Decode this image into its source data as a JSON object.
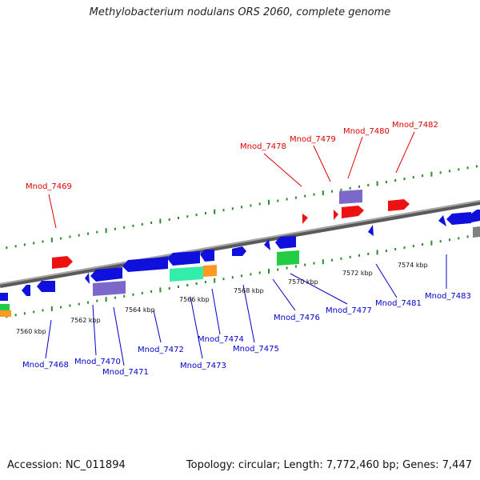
{
  "title": "Methylobacterium nodulans ORS 2060, complete genome",
  "footer": {
    "accession": "Accession: NC_011894",
    "topology": "Topology: circular; Length: 7,772,460 bp; Genes: 7,447"
  },
  "scale_labels": [
    "7560 kbp",
    "7562 kbp",
    "7564 kbp",
    "7566 kbp",
    "7568 kbp",
    "7570 kbp",
    "7572 kbp",
    "7574 kbp"
  ],
  "labels_top": [
    "Mnod_7469",
    "Mnod_7478",
    "Mnod_7479",
    "Mnod_7480",
    "Mnod_7482"
  ],
  "labels_bottom": [
    "Mnod_7468",
    "Mnod_7470",
    "Mnod_7471",
    "Mnod_7472",
    "Mnod_7473",
    "Mnod_7474",
    "Mnod_7475",
    "Mnod_7476",
    "Mnod_7477",
    "Mnod_7481",
    "Mnod_7483"
  ],
  "colors": {
    "top_label": "#dd0000",
    "bottom_label": "#0000cc",
    "tick": "#2a8a2a",
    "backbone": "#808080",
    "gene_blue": "#1010dd",
    "gene_red": "#ee1111",
    "gene_purple": "#7b68c8",
    "gene_green": "#22cc44",
    "gene_teal": "#33eeaa",
    "gene_orange": "#ff9922"
  }
}
